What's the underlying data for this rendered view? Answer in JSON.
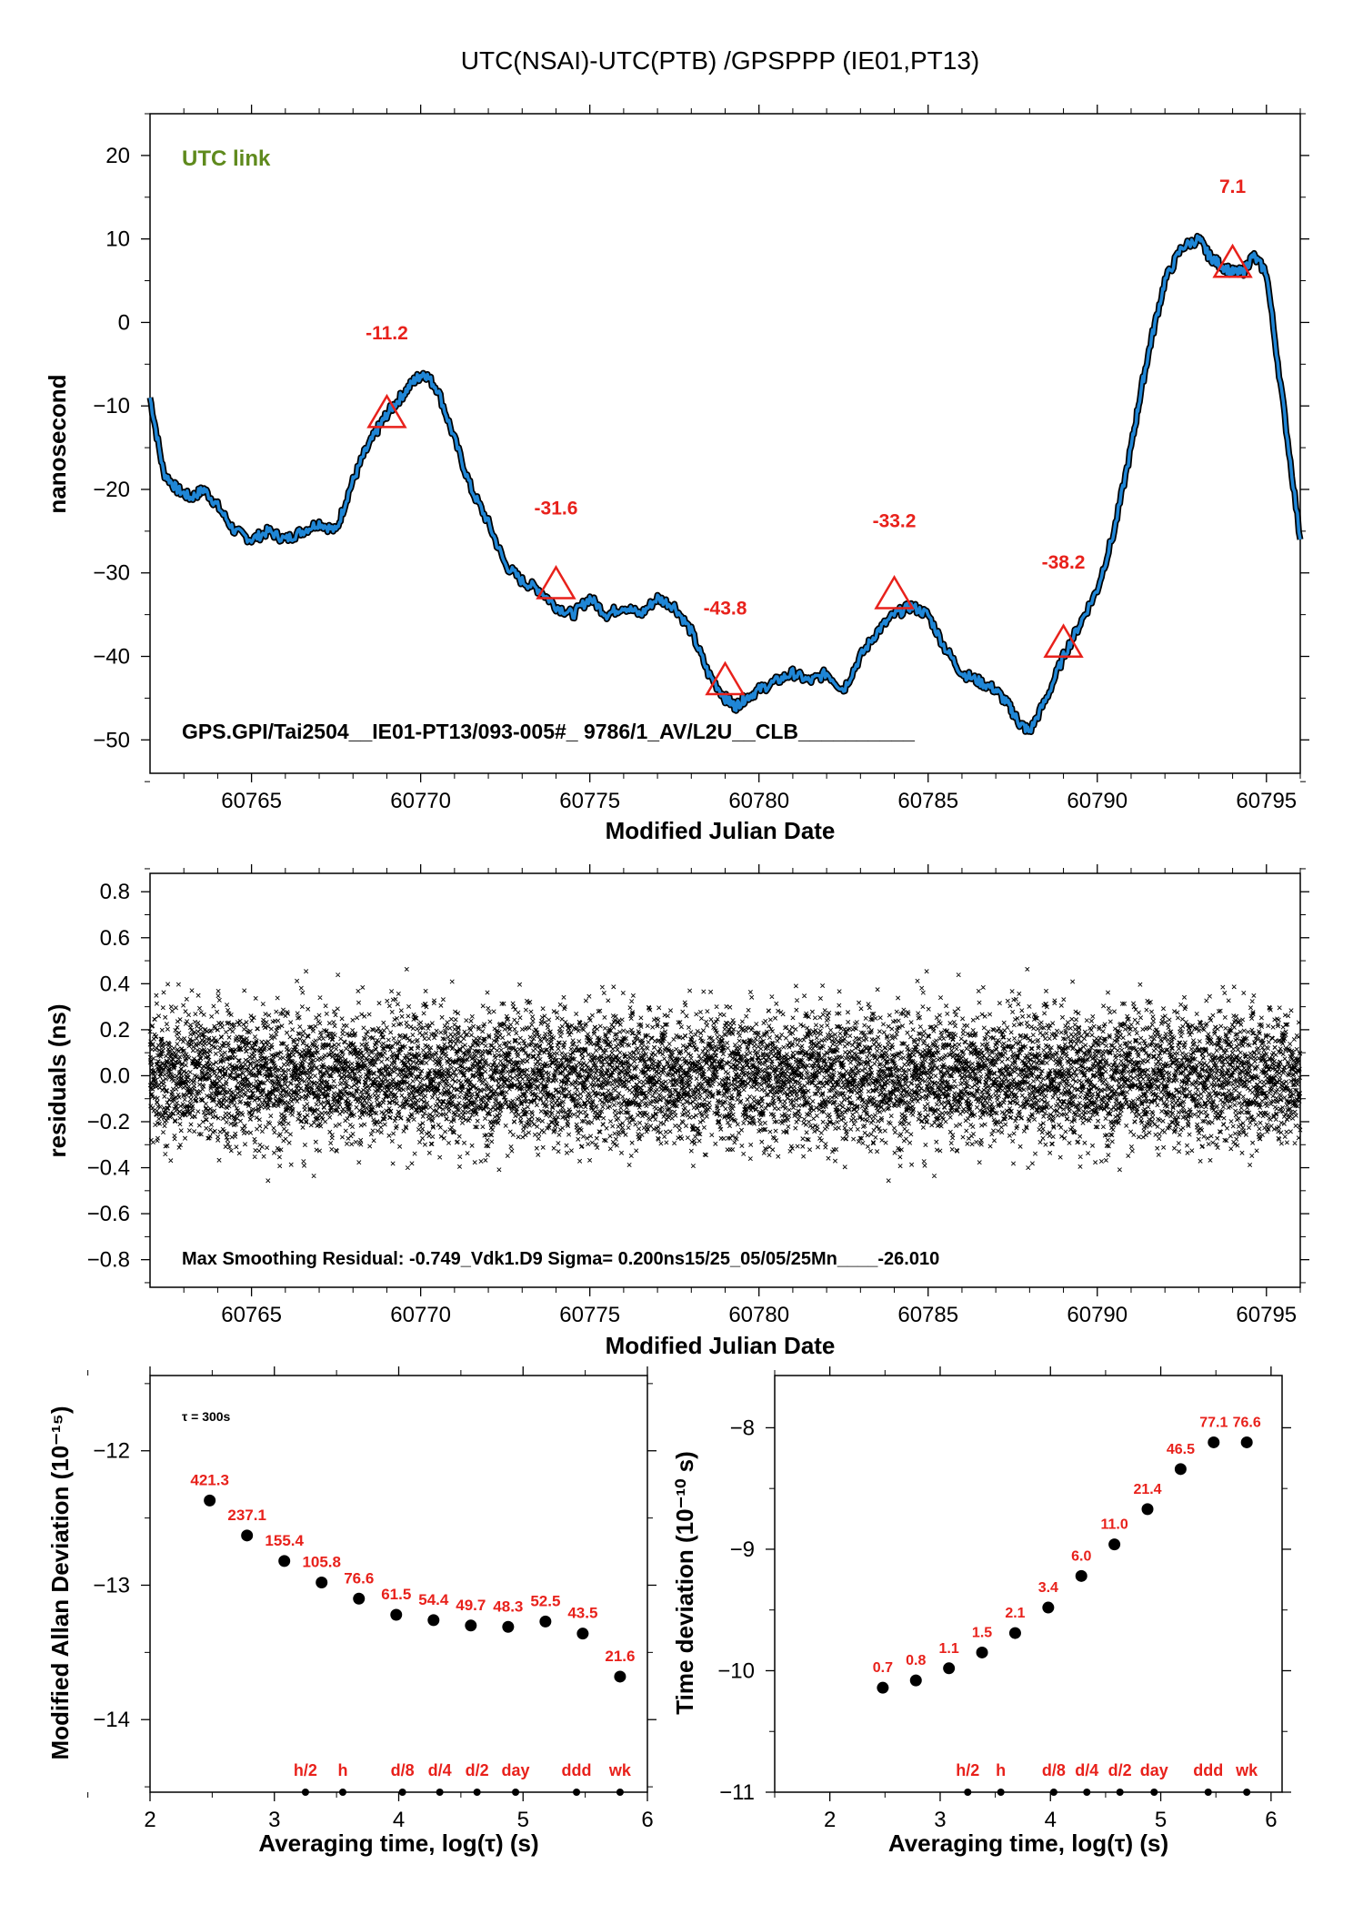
{
  "title": "UTC(NSAI)-UTC(PTB)  /GPSPPP  (IE01,PT13)",
  "colors": {
    "series": "#1f86d6",
    "outline": "#000000",
    "marker": "#e8211b",
    "link_label": "#5f8a1d"
  },
  "chart_data": [
    {
      "type": "line",
      "name": "top",
      "link_label": "UTC link",
      "info": "GPS.GPI/Tai2504__IE01-PT13/093-005#_  9786/1_AV/L2U__CLB__________",
      "xlabel": "Modified Julian Date",
      "ylabel": "nanosecond",
      "xlim": [
        60762,
        60796
      ],
      "ylim": [
        -54,
        25
      ],
      "xticks": [
        60765,
        60770,
        60775,
        60780,
        60785,
        60790,
        60795
      ],
      "yticks": [
        20,
        10,
        0,
        -10,
        -20,
        -30,
        -40,
        -50
      ],
      "yticklabels": [
        "20",
        "10",
        "0",
        "−10",
        "−20",
        "−30",
        "−40",
        "−50"
      ],
      "series": [
        {
          "x": [
            60762,
            60762.4,
            60762.8,
            60763.2,
            60763.6,
            60764,
            60764.5,
            60765,
            60765.5,
            60766,
            60766.5,
            60767,
            60767.5,
            60767.9,
            60768.3,
            60768.7,
            60769,
            60769.4,
            60769.8,
            60770.1,
            60770.5,
            60771,
            60771.5,
            60772,
            60772.5,
            60773,
            60773.5,
            60774,
            60774.5,
            60775,
            60775.5,
            60776,
            60776.5,
            60777,
            60777.5,
            60778,
            60778.5,
            60779,
            60779.3,
            60779.6,
            60780,
            60780.5,
            60781,
            60781.5,
            60782,
            60782.5,
            60783,
            60783.5,
            60784,
            60784.5,
            60785,
            60785.5,
            60786,
            60786.5,
            60787,
            60787.4,
            60787.7,
            60788,
            60788.5,
            60789,
            60789.5,
            60790,
            60790.5,
            60791,
            60791.3,
            60791.6,
            60792,
            60792.5,
            60793,
            60793.3,
            60793.6,
            60794,
            60794.3,
            60794.6,
            60795,
            60795.5,
            60796
          ],
          "y": [
            -9,
            -18,
            -20,
            -21,
            -20,
            -22,
            -25,
            -26,
            -25,
            -26,
            -25,
            -24,
            -25,
            -20,
            -16,
            -13,
            -11,
            -9,
            -7,
            -6,
            -8,
            -14,
            -20,
            -24,
            -29,
            -31,
            -32,
            -34,
            -35,
            -33,
            -35,
            -34,
            -35,
            -33,
            -34,
            -37,
            -42,
            -45,
            -46,
            -45,
            -44,
            -43,
            -42,
            -43,
            -42,
            -44,
            -40,
            -37,
            -35,
            -34,
            -35,
            -39,
            -42,
            -43,
            -44,
            -46,
            -48,
            -49,
            -45,
            -40,
            -36,
            -32,
            -25,
            -15,
            -8,
            -2,
            5,
            9,
            10,
            8,
            7,
            6,
            6,
            8,
            6,
            -10,
            -26
          ]
        }
      ],
      "annotations": [
        {
          "x": 60769,
          "y": -11,
          "label": "-11.2",
          "lx": 60769,
          "ly": -2
        },
        {
          "x": 60774,
          "y": -31.5,
          "label": "-31.6",
          "lx": 60774,
          "ly": -23
        },
        {
          "x": 60779,
          "y": -43,
          "label": "-43.8",
          "lx": 60779,
          "ly": -35
        },
        {
          "x": 60784,
          "y": -32.7,
          "label": "-33.2",
          "lx": 60784,
          "ly": -24.5
        },
        {
          "x": 60789,
          "y": -38.5,
          "label": "-38.2",
          "lx": 60789,
          "ly": -29.5
        },
        {
          "x": 60794,
          "y": 7,
          "label": "7.1",
          "lx": 60794,
          "ly": 15.5
        }
      ]
    },
    {
      "type": "scatter",
      "name": "residuals",
      "info": "Max Smoothing Residual: -0.749_Vdk1.D9  Sigma= 0.200ns15/25_05/05/25Mn____-26.010",
      "xlabel": "Modified Julian Date",
      "ylabel": "residuals (ns)",
      "xlim": [
        60762,
        60796
      ],
      "ylim": [
        -0.92,
        0.88
      ],
      "xticks": [
        60765,
        60770,
        60775,
        60780,
        60785,
        60790,
        60795
      ],
      "yticks": [
        0.8,
        0.6,
        0.4,
        0.2,
        0.0,
        -0.2,
        -0.4,
        -0.6,
        -0.8
      ],
      "yticklabels": [
        "0.8",
        "0.6",
        "0.4",
        "0.2",
        "0.0",
        "−0.2",
        "−0.4",
        "−0.6",
        "−0.8"
      ],
      "sigma": 0.2,
      "max_residual": -0.749,
      "n_points": 9700
    },
    {
      "type": "scatter",
      "name": "mdev",
      "tau_note": "τ = 300s",
      "xlabel": "Averaging time, log(τ) (s)",
      "ylabel": "Modified Allan Deviation (10⁻¹⁵)",
      "xlim": [
        2,
        6
      ],
      "ylim": [
        -14.54,
        -11.44
      ],
      "xticks": [
        2,
        3,
        4,
        5,
        6
      ],
      "yticks": [
        -12,
        -13,
        -14
      ],
      "yticklabels": [
        "−12",
        "−13",
        "−14"
      ],
      "x": [
        2.48,
        2.78,
        3.08,
        3.38,
        3.68,
        3.98,
        4.28,
        4.58,
        4.88,
        5.18,
        5.48,
        5.78
      ],
      "y": [
        -12.37,
        -12.63,
        -12.82,
        -12.98,
        -13.1,
        -13.22,
        -13.26,
        -13.3,
        -13.31,
        -13.27,
        -13.36,
        -13.68
      ],
      "labels": [
        "421.3",
        "237.1",
        "155.4",
        "105.8",
        "76.6",
        "61.5",
        "54.4",
        "49.7",
        "48.3",
        "52.5",
        "43.5",
        "21.6"
      ],
      "marker_x": [
        3.25,
        3.55,
        4.03,
        4.33,
        4.63,
        4.94,
        5.43,
        5.78
      ],
      "marker_labels": [
        "h/2",
        "h",
        "d/8",
        "d/4",
        "d/2",
        "day",
        "ddd",
        "wk"
      ]
    },
    {
      "type": "scatter",
      "name": "tdev",
      "xlabel": "Averaging time, log(τ) (s)",
      "ylabel": "Time deviation (10⁻¹⁰ s)",
      "xlim": [
        1.5,
        6.1
      ],
      "ylim": [
        -11,
        -7.57
      ],
      "xticks": [
        2,
        3,
        4,
        5,
        6
      ],
      "yticks": [
        -8,
        -9,
        -10,
        -11
      ],
      "yticklabels": [
        "−8",
        "−9",
        "−10",
        "−11"
      ],
      "x": [
        2.48,
        2.78,
        3.08,
        3.38,
        3.68,
        3.98,
        4.28,
        4.58,
        4.88,
        5.18,
        5.48,
        5.78
      ],
      "y": [
        -10.14,
        -10.08,
        -9.98,
        -9.85,
        -9.69,
        -9.48,
        -9.22,
        -8.96,
        -8.67,
        -8.34,
        -8.12,
        -8.12
      ],
      "labels": [
        "0.7",
        "0.8",
        "1.1",
        "1.5",
        "2.1",
        "3.4",
        "6.0",
        "11.0",
        "21.4",
        "46.5",
        "77.1",
        "76.6"
      ],
      "marker_x": [
        3.25,
        3.55,
        4.03,
        4.33,
        4.63,
        4.94,
        5.43,
        5.78
      ],
      "marker_labels": [
        "h/2",
        "h",
        "d/8",
        "d/4",
        "d/2",
        "day",
        "ddd",
        "wk"
      ]
    }
  ]
}
